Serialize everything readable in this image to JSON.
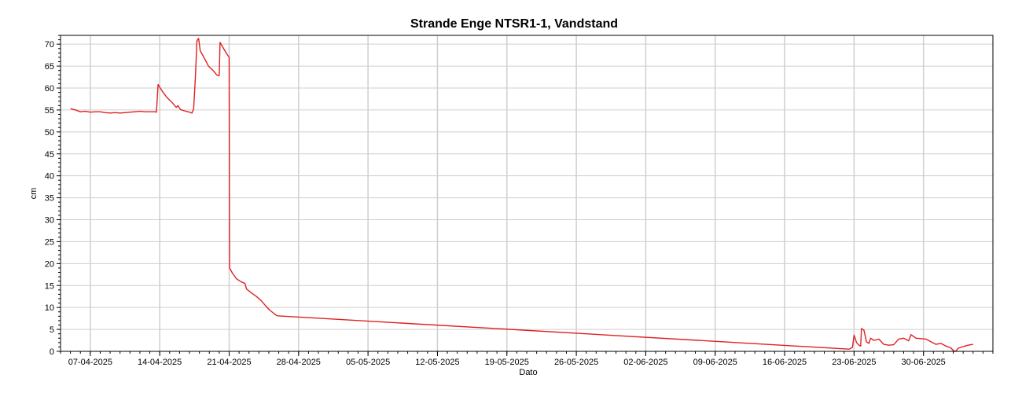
{
  "chart_data": {
    "type": "line",
    "title": "Strande Enge NTSR1-1, Vandstand",
    "xlabel": "Dato",
    "ylabel": "cm",
    "x_type": "date",
    "xlim": [
      "2025-04-04",
      "2025-07-07"
    ],
    "ylim": [
      0,
      72
    ],
    "y_ticks": [
      0,
      5,
      10,
      15,
      20,
      25,
      30,
      35,
      40,
      45,
      50,
      55,
      60,
      65,
      70
    ],
    "x_ticks": [
      "2025-04-07",
      "2025-04-14",
      "2025-04-21",
      "2025-04-28",
      "2025-05-05",
      "2025-05-12",
      "2025-05-19",
      "2025-05-26",
      "2025-06-02",
      "2025-06-09",
      "2025-06-16",
      "2025-06-23",
      "2025-06-30"
    ],
    "x_tick_labels": [
      "07-04-2025",
      "14-04-2025",
      "21-04-2025",
      "28-04-2025",
      "05-05-2025",
      "12-05-2025",
      "19-05-2025",
      "26-05-2025",
      "02-06-2025",
      "09-06-2025",
      "16-06-2025",
      "23-06-2025",
      "30-06-2025"
    ],
    "grid": true,
    "series": [
      {
        "color": "#e02020",
        "points": [
          [
            "2025-04-05 00:00",
            55.3
          ],
          [
            "2025-04-05 12:00",
            55.0
          ],
          [
            "2025-04-06 00:00",
            54.6
          ],
          [
            "2025-04-06 12:00",
            54.7
          ],
          [
            "2025-04-07 00:00",
            54.5
          ],
          [
            "2025-04-07 12:00",
            54.6
          ],
          [
            "2025-04-08 00:00",
            54.6
          ],
          [
            "2025-04-08 12:00",
            54.4
          ],
          [
            "2025-04-09 00:00",
            54.3
          ],
          [
            "2025-04-09 12:00",
            54.4
          ],
          [
            "2025-04-10 00:00",
            54.3
          ],
          [
            "2025-04-10 12:00",
            54.4
          ],
          [
            "2025-04-11 00:00",
            54.5
          ],
          [
            "2025-04-11 12:00",
            54.6
          ],
          [
            "2025-04-12 00:00",
            54.7
          ],
          [
            "2025-04-12 12:00",
            54.6
          ],
          [
            "2025-04-13 00:00",
            54.6
          ],
          [
            "2025-04-13 12:00",
            54.6
          ],
          [
            "2025-04-13 16:00",
            54.5
          ],
          [
            "2025-04-13 20:00",
            60.8
          ],
          [
            "2025-04-14 06:00",
            59.3
          ],
          [
            "2025-04-14 18:00",
            57.8
          ],
          [
            "2025-04-15 06:00",
            56.7
          ],
          [
            "2025-04-15 16:00",
            55.6
          ],
          [
            "2025-04-15 20:00",
            56.0
          ],
          [
            "2025-04-16 02:00",
            55.1
          ],
          [
            "2025-04-16 12:00",
            54.8
          ],
          [
            "2025-04-17 00:00",
            54.5
          ],
          [
            "2025-04-17 06:00",
            54.3
          ],
          [
            "2025-04-17 10:00",
            55.2
          ],
          [
            "2025-04-17 14:00",
            62.0
          ],
          [
            "2025-04-17 18:00",
            70.8
          ],
          [
            "2025-04-17 22:00",
            71.3
          ],
          [
            "2025-04-18 02:00",
            68.5
          ],
          [
            "2025-04-18 12:00",
            66.8
          ],
          [
            "2025-04-18 22:00",
            65.0
          ],
          [
            "2025-04-19 10:00",
            63.9
          ],
          [
            "2025-04-19 18:00",
            63.0
          ],
          [
            "2025-04-19 23:00",
            62.8
          ],
          [
            "2025-04-20 00:00",
            62.9
          ],
          [
            "2025-04-20 02:00",
            70.4
          ],
          [
            "2025-04-20 08:00",
            69.4
          ],
          [
            "2025-04-20 18:00",
            67.8
          ],
          [
            "2025-04-21 00:00",
            67.0
          ],
          [
            "2025-04-21 01:00",
            19.0
          ],
          [
            "2025-04-21 08:00",
            17.8
          ],
          [
            "2025-04-21 18:00",
            16.5
          ],
          [
            "2025-04-22 06:00",
            15.8
          ],
          [
            "2025-04-22 14:00",
            15.5
          ],
          [
            "2025-04-22 18:00",
            14.2
          ],
          [
            "2025-04-23 06:00",
            13.3
          ],
          [
            "2025-04-23 18:00",
            12.5
          ],
          [
            "2025-04-24 06:00",
            11.5
          ],
          [
            "2025-04-24 16:00",
            10.4
          ],
          [
            "2025-04-25 02:00",
            9.4
          ],
          [
            "2025-04-25 14:00",
            8.5
          ],
          [
            "2025-04-25 20:00",
            8.1
          ],
          [
            "2025-06-22 12:00",
            0.5
          ],
          [
            "2025-06-22 20:00",
            0.9
          ],
          [
            "2025-06-23 00:00",
            3.7
          ],
          [
            "2025-06-23 06:00",
            2.0
          ],
          [
            "2025-06-23 12:00",
            1.4
          ],
          [
            "2025-06-23 16:00",
            1.2
          ],
          [
            "2025-06-23 18:00",
            5.2
          ],
          [
            "2025-06-24 00:00",
            4.8
          ],
          [
            "2025-06-24 06:00",
            2.2
          ],
          [
            "2025-06-24 12:00",
            1.8
          ],
          [
            "2025-06-24 16:00",
            3.0
          ],
          [
            "2025-06-25 00:00",
            2.5
          ],
          [
            "2025-06-25 12:00",
            2.8
          ],
          [
            "2025-06-26 00:00",
            1.6
          ],
          [
            "2025-06-26 12:00",
            1.4
          ],
          [
            "2025-06-27 00:00",
            1.5
          ],
          [
            "2025-06-27 12:00",
            2.8
          ],
          [
            "2025-06-28 00:00",
            3.0
          ],
          [
            "2025-06-28 12:00",
            2.4
          ],
          [
            "2025-06-28 18:00",
            3.8
          ],
          [
            "2025-06-29 06:00",
            3.0
          ],
          [
            "2025-06-29 18:00",
            2.9
          ],
          [
            "2025-06-30 06:00",
            2.8
          ],
          [
            "2025-06-30 18:00",
            2.2
          ],
          [
            "2025-07-01 06:00",
            1.6
          ],
          [
            "2025-07-01 18:00",
            1.8
          ],
          [
            "2025-07-02 06:00",
            1.2
          ],
          [
            "2025-07-02 18:00",
            0.8
          ],
          [
            "2025-07-03 00:00",
            0.2
          ],
          [
            "2025-07-03 06:00",
            0.0
          ],
          [
            "2025-07-03 12:00",
            0.7
          ],
          [
            "2025-07-04 00:00",
            1.1
          ],
          [
            "2025-07-04 12:00",
            1.4
          ],
          [
            "2025-07-05 00:00",
            1.6
          ]
        ]
      }
    ]
  }
}
